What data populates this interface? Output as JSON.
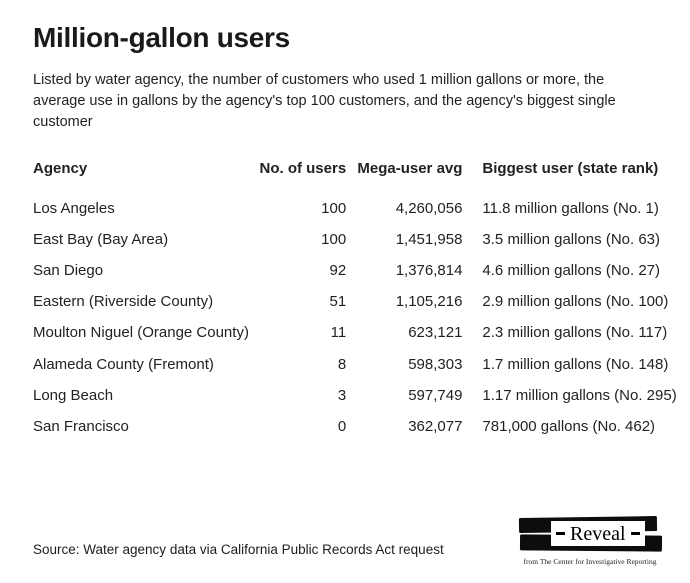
{
  "header": {
    "title": "Million-gallon users",
    "subtitle": "Listed by water agency, the number of customers who used 1 million gallons or more, the average use in gallons by the agency's top 100 customers, and the agency's biggest single customer"
  },
  "table": {
    "columns": [
      "Agency",
      "No. of users",
      "Mega-user avg",
      "Biggest user (state rank)"
    ],
    "rows": [
      [
        "Los Angeles",
        "100",
        "4,260,056",
        "11.8 million gallons (No. 1)"
      ],
      [
        "East Bay (Bay Area)",
        "100",
        "1,451,958",
        "3.5 million gallons (No. 63)"
      ],
      [
        "San Diego",
        "92",
        "1,376,814",
        "4.6 million gallons (No. 27)"
      ],
      [
        "Eastern (Riverside County)",
        "51",
        "1,105,216",
        "2.9 million gallons (No. 100)"
      ],
      [
        "Moulton Niguel (Orange County)",
        "11",
        "623,121",
        "2.3 million gallons (No. 117)"
      ],
      [
        "Alameda County (Fremont)",
        "8",
        "598,303",
        "1.7 million gallons (No. 148)"
      ],
      [
        "Long Beach",
        "3",
        "597,749",
        "1.17 million gallons (No. 295)"
      ],
      [
        "San Francisco",
        "0",
        "362,077",
        "781,000 gallons (No. 462)"
      ]
    ]
  },
  "chart_data": {
    "type": "table",
    "title": "Million-gallon users",
    "subtitle": "Listed by water agency, the number of customers who used 1 million gallons or more, the average use in gallons by the agency's top 100 customers, and the agency's biggest single customer",
    "columns": [
      "Agency",
      "No. of users",
      "Mega-user avg",
      "Biggest user (state rank)"
    ],
    "rows": [
      {
        "agency": "Los Angeles",
        "no_of_users": 100,
        "mega_user_avg_gallons": 4260056,
        "biggest_user_gallons": 11800000,
        "biggest_user_state_rank": 1
      },
      {
        "agency": "East Bay (Bay Area)",
        "no_of_users": 100,
        "mega_user_avg_gallons": 1451958,
        "biggest_user_gallons": 3500000,
        "biggest_user_state_rank": 63
      },
      {
        "agency": "San Diego",
        "no_of_users": 92,
        "mega_user_avg_gallons": 1376814,
        "biggest_user_gallons": 4600000,
        "biggest_user_state_rank": 27
      },
      {
        "agency": "Eastern (Riverside County)",
        "no_of_users": 51,
        "mega_user_avg_gallons": 1105216,
        "biggest_user_gallons": 2900000,
        "biggest_user_state_rank": 100
      },
      {
        "agency": "Moulton Niguel (Orange County)",
        "no_of_users": 11,
        "mega_user_avg_gallons": 623121,
        "biggest_user_gallons": 2300000,
        "biggest_user_state_rank": 117
      },
      {
        "agency": "Alameda County (Fremont)",
        "no_of_users": 8,
        "mega_user_avg_gallons": 598303,
        "biggest_user_gallons": 1700000,
        "biggest_user_state_rank": 148
      },
      {
        "agency": "Long Beach",
        "no_of_users": 3,
        "mega_user_avg_gallons": 597749,
        "biggest_user_gallons": 1170000,
        "biggest_user_state_rank": 295
      },
      {
        "agency": "San Francisco",
        "no_of_users": 0,
        "mega_user_avg_gallons": 362077,
        "biggest_user_gallons": 781000,
        "biggest_user_state_rank": 462
      }
    ],
    "source": "Source: Water agency data via California Public Records Act request"
  },
  "footer": {
    "source": "Source: Water agency data via California Public Records Act request",
    "logo": {
      "brand": "Reveal",
      "tagline": "from The Center for Investigative Reporting"
    }
  },
  "colors": {
    "text": "#1e1e1e",
    "background": "#ffffff",
    "logo_black": "#0d0d0d"
  }
}
